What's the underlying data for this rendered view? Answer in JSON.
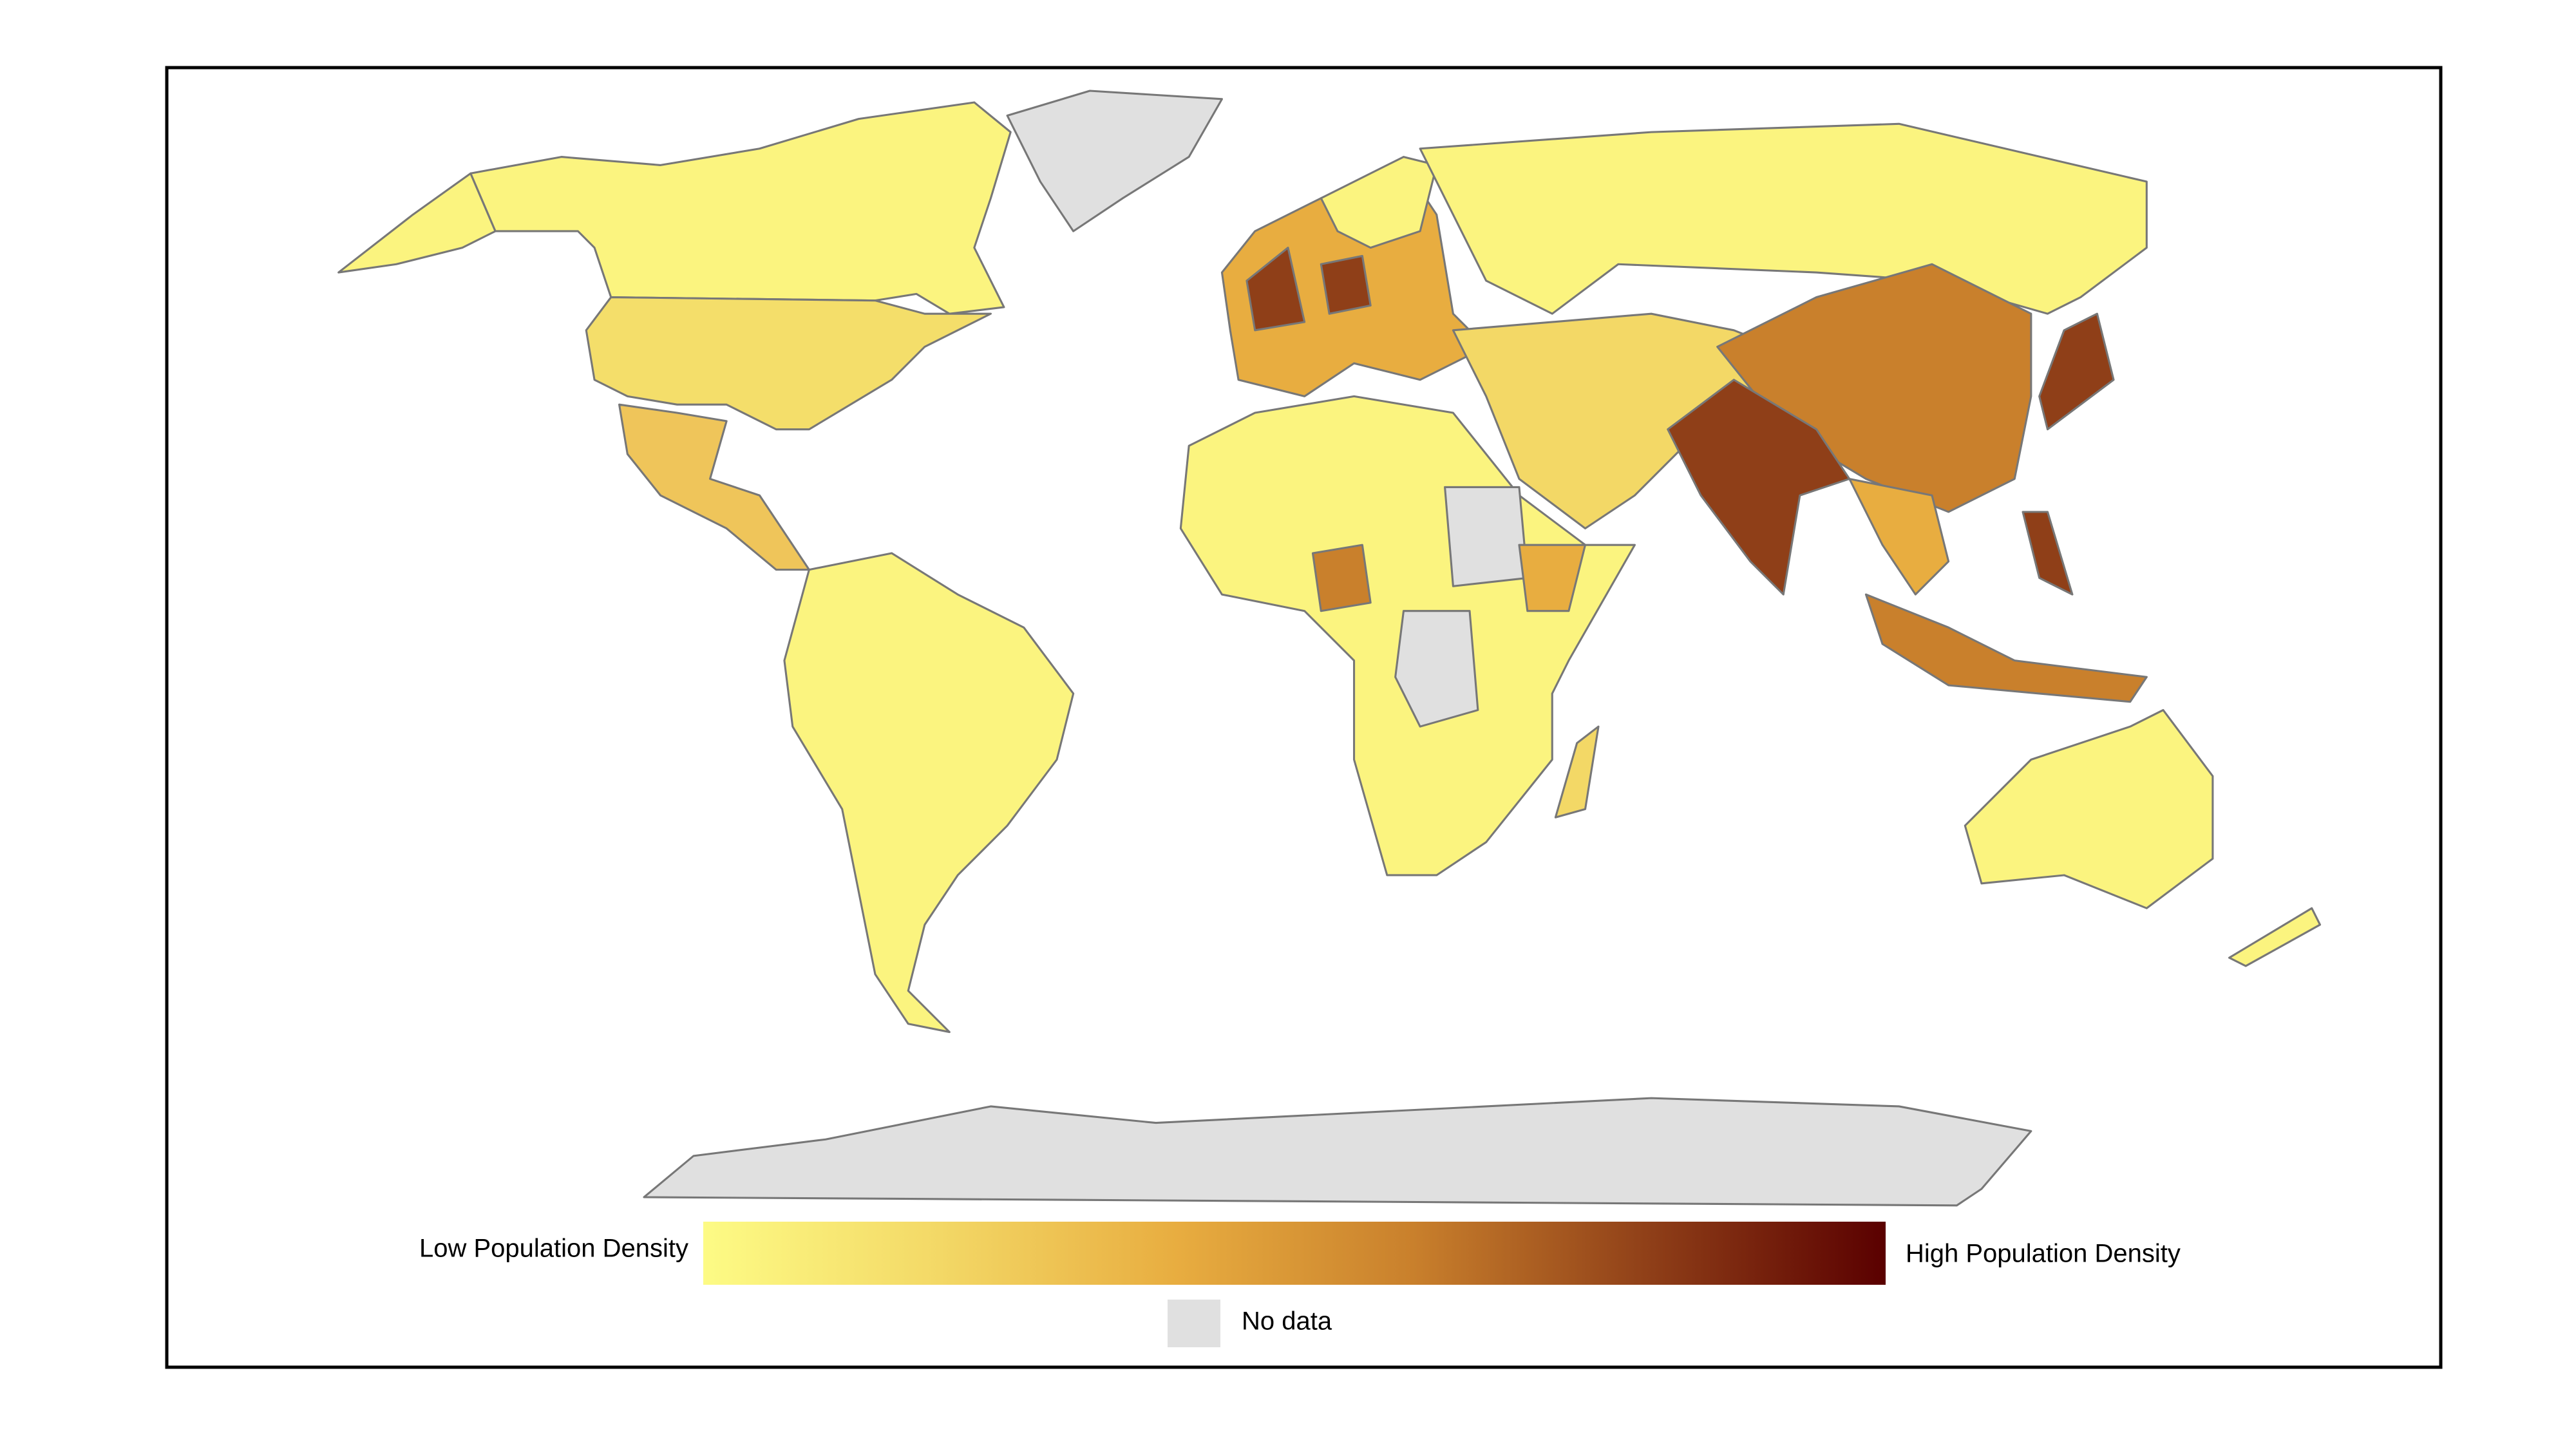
{
  "legend": {
    "low_label": "Low Population Density",
    "high_label": "High Population Density",
    "no_data_label": "No data",
    "gradient_colors": [
      "#fdfb85",
      "#f3d866",
      "#e8ad40",
      "#c9802c",
      "#8f3f18",
      "#5a0000"
    ],
    "no_data_color": "#e0e0e0"
  }
}
